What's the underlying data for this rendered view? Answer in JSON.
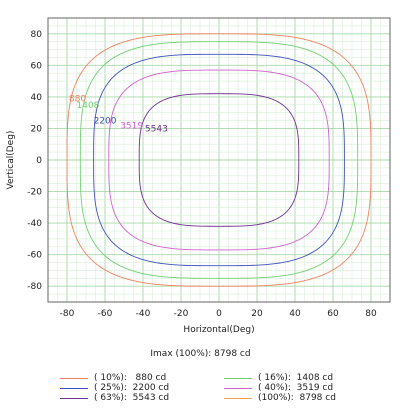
{
  "chart_data": {
    "type": "contour",
    "xlabel": "Horizontal(Deg)",
    "ylabel": "Vertical(Deg)",
    "xlim": [
      -90,
      90
    ],
    "ylim": [
      -90,
      90
    ],
    "xticks": [
      -80,
      -60,
      -40,
      -20,
      0,
      20,
      40,
      60,
      80
    ],
    "yticks": [
      80,
      60,
      40,
      20,
      0,
      -20,
      -40,
      -60,
      -80
    ],
    "grid": true,
    "imax_text": "Imax (100%): 8798 cd",
    "series": [
      {
        "legend": "( 10%):   880 cd",
        "label": "880",
        "color": "#f08060",
        "half_width": 80,
        "half_height": 80,
        "label_x": -79,
        "label_y": 37
      },
      {
        "legend": "( 16%):  1408 cd",
        "label": "1408",
        "color": "#70d070",
        "half_width": 73,
        "half_height": 75,
        "label_x": -75,
        "label_y": 33
      },
      {
        "legend": "( 25%):  2200 cd",
        "label": "2200",
        "color": "#4050c0",
        "half_width": 66,
        "half_height": 67,
        "label_x": -66,
        "label_y": 23
      },
      {
        "legend": "( 40%):  3519 cd",
        "label": "3519",
        "color": "#d060d0",
        "half_width": 58,
        "half_height": 57,
        "label_x": -52,
        "label_y": 20
      },
      {
        "legend": "( 63%):  5543 cd",
        "label": "5543",
        "color": "#703090",
        "half_width": 42,
        "half_height": 42,
        "label_x": -39,
        "label_y": 18
      },
      {
        "legend": "(100%):  8798 cd",
        "label": "",
        "color": "#f0a050",
        "half_width": 0,
        "half_height": 0,
        "label_x": 0,
        "label_y": 0
      }
    ]
  }
}
